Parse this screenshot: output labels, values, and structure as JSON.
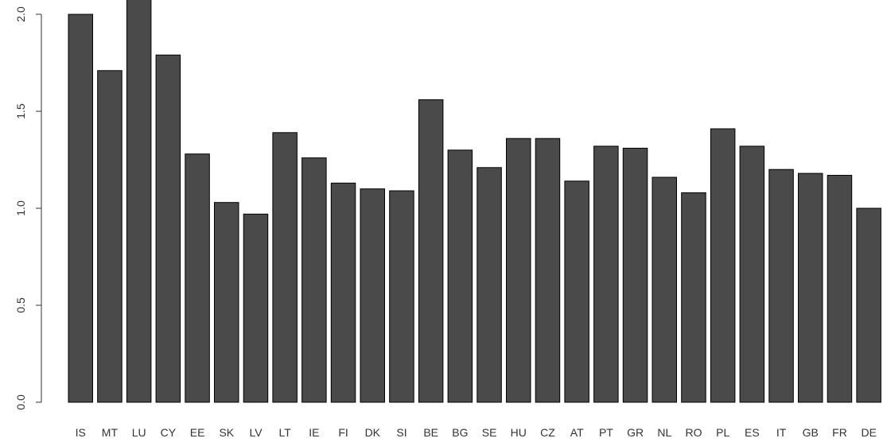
{
  "chart_data": {
    "type": "bar",
    "categories": [
      "IS",
      "MT",
      "LU",
      "CY",
      "EE",
      "SK",
      "LV",
      "LT",
      "IE",
      "FI",
      "DK",
      "SI",
      "BE",
      "BG",
      "SE",
      "HU",
      "CZ",
      "AT",
      "PT",
      "GR",
      "NL",
      "RO",
      "PL",
      "ES",
      "IT",
      "GB",
      "FR",
      "DE"
    ],
    "values": [
      2.0,
      1.71,
      2.09,
      1.79,
      1.28,
      1.03,
      0.97,
      1.39,
      1.26,
      1.13,
      1.1,
      1.09,
      1.56,
      1.3,
      1.21,
      1.36,
      1.36,
      1.14,
      1.32,
      1.31,
      1.16,
      1.08,
      1.41,
      1.32,
      1.2,
      1.18,
      1.17,
      1.0
    ],
    "title": "",
    "xlabel": "",
    "ylabel": "",
    "ylim": [
      0,
      2.0
    ],
    "yticks": [
      "0.0",
      "0.5",
      "1.0",
      "1.5",
      "2.0"
    ],
    "bar_color": "#4a4a4a",
    "bar_stroke": "#000000",
    "grid": false,
    "legend": "none"
  }
}
